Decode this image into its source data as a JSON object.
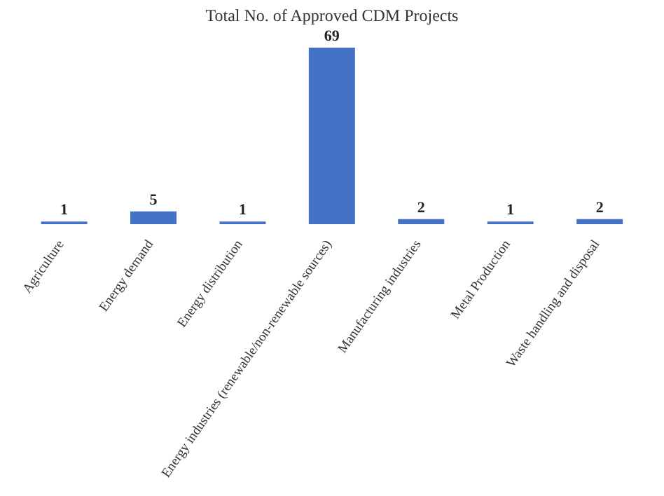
{
  "chart_data": {
    "type": "bar",
    "title": "Total No. of Approved CDM Projects",
    "categories": [
      "Agriculture",
      "Energy demand",
      "Energy distribution",
      "Energy industries (renewable/non-renewable sources)",
      "Manufacturing industries",
      "Metal Production",
      "Waste handling and disposal"
    ],
    "values": [
      1,
      5,
      1,
      69,
      2,
      1,
      2
    ],
    "color": "#4472c4",
    "data_labels": true,
    "grid": false,
    "legend": false
  }
}
